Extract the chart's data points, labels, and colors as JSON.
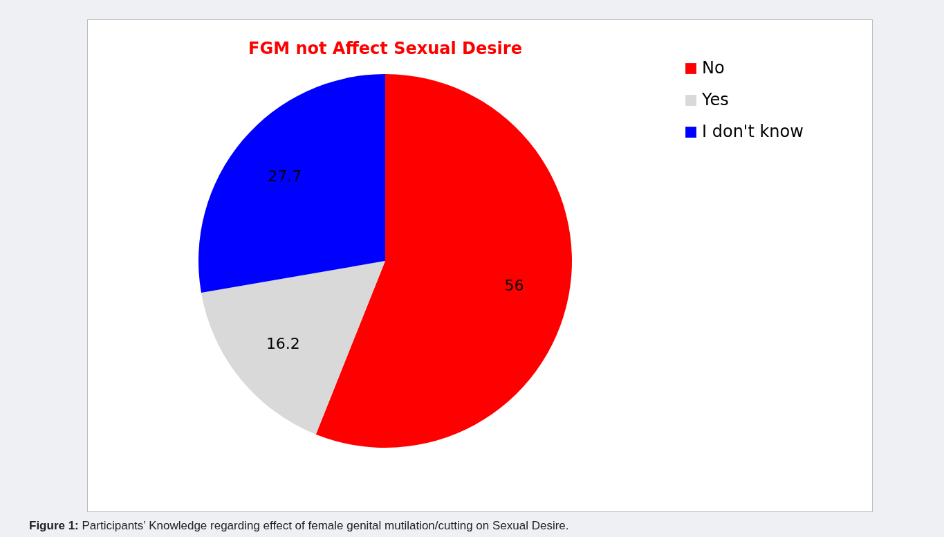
{
  "chart_data": {
    "type": "pie",
    "title": "FGM not Affect Sexual Desire",
    "categories": [
      "No",
      "Yes",
      "I don't know"
    ],
    "values": [
      56,
      16.2,
      27.7
    ],
    "colors": [
      "#ff0000",
      "#d9d9d9",
      "#0000ff"
    ],
    "data_labels": true,
    "legend": "right",
    "annotations": [
      "Figure 1: Participants’ Knowledge regarding effect of female genital mutilation/cutting on Sexual Desire."
    ]
  }
}
